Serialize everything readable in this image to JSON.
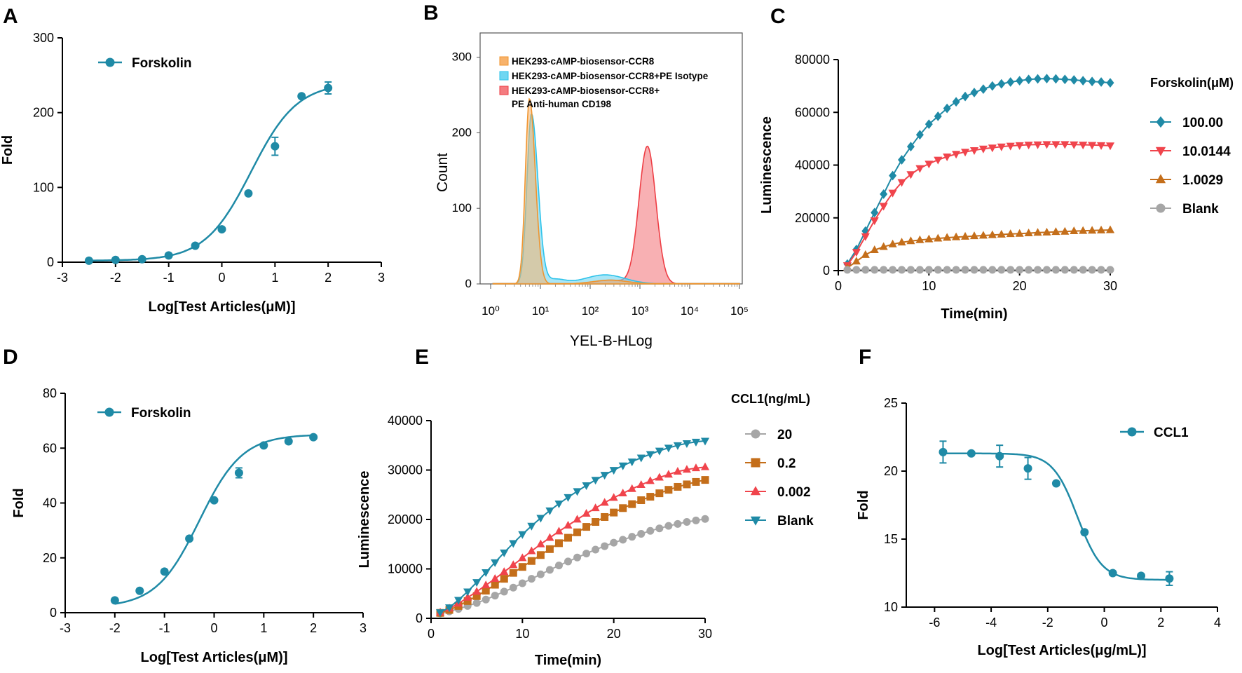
{
  "colors": {
    "teal": "#1f8aa6",
    "red": "#f0444c",
    "orange": "#c46e1a",
    "gray": "#a6a6a6",
    "hist_orange": "#f7b26b",
    "hist_cyan": "#6fd6f1",
    "hist_red": "#f47c80"
  },
  "chart_data": [
    {
      "panel": "A",
      "type": "scatter",
      "xlabel": "Log[Test Articles(μM)]",
      "ylabel": "Fold",
      "xlim": [
        -3,
        3
      ],
      "ylim": [
        0,
        300
      ],
      "xticks": [
        "-3",
        "-2",
        "-1",
        "0",
        "1",
        "2",
        "3"
      ],
      "yticks": [
        "0",
        "100",
        "200",
        "300"
      ],
      "legend": "top-left",
      "fit": {
        "bottom": 2,
        "top": 240,
        "logec50": 0.55,
        "hill": 1
      },
      "series": [
        {
          "name": "Forskolin",
          "x": [
            -2.5,
            -2,
            -1.5,
            -1,
            -0.5,
            0,
            0.5,
            1,
            1.5,
            2
          ],
          "y": [
            2,
            3,
            4,
            9,
            22,
            44,
            92,
            155,
            222,
            233
          ],
          "err": [
            0,
            0,
            0,
            0,
            0,
            0,
            0,
            12,
            0,
            8
          ]
        }
      ]
    },
    {
      "panel": "B",
      "type": "area",
      "xlabel": "YEL-B-HLog",
      "ylabel": "Count",
      "xlim": [
        0,
        5
      ],
      "ylim": [
        0,
        320
      ],
      "xticks": [
        "10⁰",
        "10¹",
        "10²",
        "10³",
        "10⁴",
        "10⁵"
      ],
      "yticks": [
        "0",
        "100",
        "200",
        "300"
      ],
      "legend": "top-left",
      "series": [
        {
          "name": "HEK293-cAMP-biosensor-CCR8",
          "peak_log": 0.78,
          "peak_count": 245
        },
        {
          "name": "HEK293-cAMP-biosensor-CCR8+PE Isotype",
          "peak_log": 0.82,
          "peak_count": 225
        },
        {
          "name": "HEK293-cAMP-biosensor-CCR8+",
          "name_line2": "PE Anti-human CD198",
          "peak_log": 3.15,
          "peak_count": 182
        }
      ]
    },
    {
      "panel": "C",
      "type": "line",
      "xlabel": "Time(min)",
      "ylabel": "Luminescence",
      "xlim": [
        0,
        30
      ],
      "ylim": [
        0,
        80000
      ],
      "xticks": [
        "0",
        "10",
        "20",
        "30"
      ],
      "yticks": [
        "0",
        "20000",
        "40000",
        "60000",
        "80000"
      ],
      "legend_title": "Forskolin(μM)",
      "legend": "right",
      "x": [
        1,
        2,
        3,
        4,
        5,
        6,
        7,
        8,
        9,
        10,
        11,
        12,
        13,
        14,
        15,
        16,
        17,
        18,
        19,
        20,
        21,
        22,
        23,
        24,
        25,
        26,
        27,
        28,
        29,
        30
      ],
      "series": [
        {
          "name": "100.00",
          "marker": "diamond",
          "values": [
            2500,
            8000,
            15000,
            22000,
            29000,
            36000,
            42000,
            47000,
            51500,
            55500,
            58500,
            61500,
            64000,
            66000,
            67500,
            68800,
            70000,
            70800,
            71500,
            72000,
            72500,
            72700,
            72800,
            72700,
            72500,
            72300,
            72000,
            71700,
            71500,
            71200
          ]
        },
        {
          "name": "10.0144",
          "marker": "triangle-down",
          "values": [
            2000,
            7000,
            13000,
            19000,
            24500,
            29500,
            33500,
            36500,
            38800,
            40500,
            42000,
            43200,
            44200,
            45000,
            45600,
            46200,
            46600,
            47000,
            47300,
            47500,
            47700,
            47800,
            47900,
            47900,
            47900,
            47800,
            47700,
            47600,
            47500,
            47400
          ]
        },
        {
          "name": "1.0029",
          "marker": "triangle-up",
          "values": [
            1000,
            3500,
            6000,
            7800,
            9000,
            10000,
            10700,
            11200,
            11600,
            11900,
            12200,
            12500,
            12700,
            12900,
            13100,
            13300,
            13500,
            13700,
            13900,
            14000,
            14200,
            14400,
            14500,
            14700,
            14800,
            15000,
            15100,
            15200,
            15300,
            15400
          ]
        },
        {
          "name": "Blank",
          "marker": "circle",
          "values": [
            300,
            300,
            300,
            300,
            300,
            300,
            300,
            300,
            300,
            300,
            300,
            300,
            300,
            300,
            300,
            300,
            300,
            300,
            300,
            300,
            300,
            300,
            300,
            300,
            300,
            300,
            300,
            300,
            300,
            300
          ]
        }
      ]
    },
    {
      "panel": "D",
      "type": "scatter",
      "xlabel": "Log[Test Articles(μM)]",
      "ylabel": "Fold",
      "xlim": [
        -3,
        3
      ],
      "ylim": [
        0,
        80
      ],
      "xticks": [
        "-3",
        "-2",
        "-1",
        "0",
        "1",
        "2",
        "3"
      ],
      "yticks": [
        "0",
        "20",
        "40",
        "60",
        "80"
      ],
      "legend": "top-left",
      "fit": {
        "bottom": 2,
        "top": 65,
        "logec50": -0.3,
        "hill": 1
      },
      "series": [
        {
          "name": "Forskolin",
          "x": [
            -2,
            -1.5,
            -1,
            -0.5,
            0,
            0.5,
            1,
            1.5,
            2
          ],
          "y": [
            4.5,
            8,
            15,
            27,
            41,
            51,
            61,
            62.5,
            64
          ],
          "err": [
            0,
            0,
            0,
            0,
            0,
            1.8,
            0,
            0,
            0
          ]
        }
      ]
    },
    {
      "panel": "E",
      "type": "line",
      "xlabel": "Time(min)",
      "ylabel": "Luminescence",
      "xlim": [
        0,
        30
      ],
      "ylim": [
        0,
        40000
      ],
      "xticks": [
        "0",
        "10",
        "20",
        "30"
      ],
      "yticks": [
        "0",
        "10000",
        "20000",
        "30000",
        "40000"
      ],
      "legend_title": "CCL1(ng/mL)",
      "legend": "top-right",
      "x": [
        1,
        2,
        3,
        4,
        5,
        6,
        7,
        8,
        9,
        10,
        11,
        12,
        13,
        14,
        15,
        16,
        17,
        18,
        19,
        20,
        21,
        22,
        23,
        24,
        25,
        26,
        27,
        28,
        29,
        30
      ],
      "series": [
        {
          "name": "20",
          "marker": "circle",
          "values": [
            1000,
            1400,
            1900,
            2500,
            3100,
            3800,
            4600,
            5400,
            6200,
            7100,
            8000,
            8900,
            9800,
            10700,
            11500,
            12300,
            13100,
            13900,
            14600,
            15300,
            15900,
            16500,
            17100,
            17700,
            18200,
            18700,
            19100,
            19500,
            19800,
            20100
          ]
        },
        {
          "name": "0.2",
          "marker": "square",
          "values": [
            1100,
            1700,
            2500,
            3500,
            4500,
            5600,
            6800,
            8000,
            9200,
            10400,
            11600,
            12800,
            14000,
            15200,
            16300,
            17400,
            18500,
            19500,
            20500,
            21400,
            22300,
            23100,
            23900,
            24600,
            25300,
            26000,
            26600,
            27100,
            27600,
            28000
          ]
        },
        {
          "name": "0.002",
          "marker": "triangle-up",
          "values": [
            1200,
            2000,
            3000,
            4200,
            5400,
            6700,
            8000,
            9400,
            10800,
            12200,
            13600,
            15000,
            16300,
            17600,
            18800,
            20000,
            21200,
            22300,
            23400,
            24400,
            25300,
            26200,
            27000,
            27800,
            28500,
            29100,
            29700,
            30100,
            30400,
            30600
          ]
        },
        {
          "name": "Blank",
          "marker": "triangle-down",
          "values": [
            1200,
            2200,
            3700,
            5400,
            7300,
            9300,
            11300,
            13300,
            15200,
            17000,
            18700,
            20300,
            21800,
            23200,
            24500,
            25700,
            26900,
            28000,
            29000,
            30000,
            30900,
            31700,
            32500,
            33200,
            33900,
            34500,
            35000,
            35400,
            35700,
            35900
          ]
        }
      ]
    },
    {
      "panel": "F",
      "type": "scatter",
      "xlabel": "Log[Test Articles(μg/mL)]",
      "ylabel": "Fold",
      "xlim": [
        -7,
        4
      ],
      "ylim": [
        10,
        25
      ],
      "xticks": [
        "-6",
        "-4",
        "-2",
        "0",
        "2",
        "4"
      ],
      "yticks": [
        "10",
        "15",
        "20",
        "25"
      ],
      "legend": "top-right",
      "fit": {
        "bottom": 12,
        "top": 21.3,
        "logec50": -0.95,
        "hill": -1
      },
      "series": [
        {
          "name": "CCL1",
          "x": [
            -5.7,
            -4.7,
            -3.7,
            -2.7,
            -1.7,
            -0.7,
            0.3,
            1.3,
            2.3
          ],
          "y": [
            21.4,
            21.3,
            21.1,
            20.2,
            19.1,
            15.5,
            12.5,
            12.3,
            12.1
          ],
          "err": [
            0.8,
            0,
            0.8,
            0.8,
            0,
            0,
            0,
            0,
            0.5
          ]
        }
      ]
    }
  ]
}
